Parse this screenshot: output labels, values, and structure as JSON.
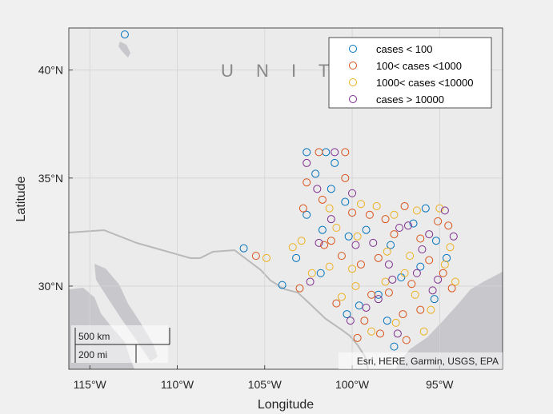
{
  "map": {
    "basemap_text": "U N I T E",
    "attribution": "Esri, HERE, Garmin, USGS, EPA",
    "scalebar_km": "500 km",
    "scalebar_mi": "200 mi",
    "xlabel": "Longitude",
    "ylabel": "Latitude",
    "lon_range": [
      -116.2,
      -91.4
    ],
    "lat_range": [
      26.15,
      41.95
    ],
    "x_ticks": [
      {
        "value": -115,
        "label": "115°W"
      },
      {
        "value": -110,
        "label": "110°W"
      },
      {
        "value": -105,
        "label": "105°W"
      },
      {
        "value": -100,
        "label": "100°W"
      },
      {
        "value": -95,
        "label": "95°W"
      }
    ],
    "y_ticks": [
      {
        "value": 30,
        "label": "30°N"
      },
      {
        "value": 35,
        "label": "35°N"
      },
      {
        "value": 40,
        "label": "40°N"
      }
    ],
    "colors": {
      "background": "#f0f0f0",
      "land": "#ebebeb",
      "water": "#c8c8cc",
      "border": "#b9b9b9",
      "grid": "#d4d4d4"
    }
  },
  "legend": {
    "items": [
      {
        "label": " cases < 100",
        "color": "#0072bd"
      },
      {
        "label": "100< cases <1000",
        "color": "#d95319"
      },
      {
        "label": "1000< cases <10000",
        "color": "#edb120"
      },
      {
        "label": "cases > 10000",
        "color": "#7e2f8e"
      }
    ]
  },
  "chart_data": {
    "type": "scatter",
    "title": "",
    "xlabel": "Longitude",
    "ylabel": "Latitude",
    "series": [
      {
        "name": " cases < 100",
        "color": "#0072bd",
        "points": [
          [
            -113.0,
            41.65
          ],
          [
            -106.2,
            31.75
          ],
          [
            -104.0,
            30.05
          ],
          [
            -102.6,
            36.2
          ],
          [
            -101.5,
            36.2
          ],
          [
            -101.0,
            35.7
          ],
          [
            -102.1,
            35.2
          ],
          [
            -101.2,
            34.5
          ],
          [
            -100.4,
            33.9
          ],
          [
            -102.6,
            33.3
          ],
          [
            -101.7,
            32.6
          ],
          [
            -100.2,
            32.3
          ],
          [
            -99.2,
            32.6
          ],
          [
            -97.8,
            31.9
          ],
          [
            -96.5,
            32.9
          ],
          [
            -95.8,
            33.6
          ],
          [
            -95.2,
            32.1
          ],
          [
            -94.6,
            31.3
          ],
          [
            -97.2,
            30.4
          ],
          [
            -98.5,
            29.6
          ],
          [
            -99.6,
            29.1
          ],
          [
            -96.1,
            30.9
          ],
          [
            -95.3,
            29.4
          ],
          [
            -98.0,
            28.4
          ],
          [
            -97.6,
            27.2
          ],
          [
            -100.3,
            28.7
          ],
          [
            -101.8,
            30.6
          ],
          [
            -103.2,
            31.3
          ]
        ]
      },
      {
        "name": "100< cases <1000",
        "color": "#d95319",
        "points": [
          [
            -105.5,
            31.4
          ],
          [
            -103.0,
            29.9
          ],
          [
            -102.6,
            34.8
          ],
          [
            -101.9,
            36.2
          ],
          [
            -100.4,
            36.2
          ],
          [
            -100.4,
            35.0
          ],
          [
            -101.7,
            34.0
          ],
          [
            -102.8,
            33.6
          ],
          [
            -100.0,
            33.4
          ],
          [
            -99.0,
            33.3
          ],
          [
            -98.1,
            33.1
          ],
          [
            -97.0,
            33.7
          ],
          [
            -101.2,
            32.1
          ],
          [
            -100.6,
            31.4
          ],
          [
            -99.5,
            31.0
          ],
          [
            -98.5,
            31.3
          ],
          [
            -97.6,
            32.4
          ],
          [
            -96.1,
            32.2
          ],
          [
            -95.1,
            33.0
          ],
          [
            -94.5,
            32.8
          ],
          [
            -94.8,
            30.6
          ],
          [
            -96.6,
            30.1
          ],
          [
            -97.9,
            29.7
          ],
          [
            -99.3,
            28.4
          ],
          [
            -98.4,
            27.8
          ],
          [
            -97.1,
            28.7
          ],
          [
            -96.1,
            28.9
          ],
          [
            -94.3,
            29.9
          ],
          [
            -99.7,
            27.6
          ],
          [
            -100.9,
            29.2
          ],
          [
            -101.6,
            31.9
          ],
          [
            -98.9,
            29.6
          ],
          [
            -95.6,
            31.2
          ],
          [
            -96.9,
            27.5
          ]
        ]
      },
      {
        "name": "1000< cases <10000",
        "color": "#edb120",
        "points": [
          [
            -104.9,
            31.3
          ],
          [
            -103.4,
            31.8
          ],
          [
            -102.3,
            30.6
          ],
          [
            -101.3,
            33.6
          ],
          [
            -99.5,
            33.8
          ],
          [
            -98.6,
            33.7
          ],
          [
            -97.6,
            33.3
          ],
          [
            -96.3,
            33.5
          ],
          [
            -95.0,
            33.6
          ],
          [
            -100.9,
            32.7
          ],
          [
            -99.7,
            32.3
          ],
          [
            -98.0,
            31.6
          ],
          [
            -96.7,
            31.4
          ],
          [
            -94.4,
            31.8
          ],
          [
            -94.7,
            31.0
          ],
          [
            -97.0,
            30.6
          ],
          [
            -98.1,
            30.2
          ],
          [
            -99.8,
            30.0
          ],
          [
            -100.6,
            29.5
          ],
          [
            -96.4,
            29.6
          ],
          [
            -95.5,
            28.9
          ],
          [
            -94.1,
            30.2
          ],
          [
            -97.5,
            28.3
          ],
          [
            -98.9,
            27.9
          ],
          [
            -101.3,
            30.9
          ],
          [
            -102.9,
            32.1
          ],
          [
            -100.0,
            30.8
          ],
          [
            -95.9,
            27.9
          ]
        ]
      },
      {
        "name": "cases > 10000",
        "color": "#7e2f8e",
        "points": [
          [
            -102.6,
            35.7
          ],
          [
            -101.0,
            36.2
          ],
          [
            -102.0,
            34.5
          ],
          [
            -100.0,
            34.3
          ],
          [
            -101.2,
            33.1
          ],
          [
            -99.8,
            31.9
          ],
          [
            -98.8,
            32.0
          ],
          [
            -97.3,
            32.7
          ],
          [
            -96.8,
            32.8
          ],
          [
            -95.6,
            32.4
          ],
          [
            -94.7,
            33.5
          ],
          [
            -94.2,
            32.3
          ],
          [
            -97.7,
            30.3
          ],
          [
            -98.5,
            29.4
          ],
          [
            -95.4,
            29.8
          ],
          [
            -95.1,
            30.3
          ],
          [
            -96.3,
            30.6
          ],
          [
            -97.4,
            27.8
          ],
          [
            -99.2,
            29.0
          ],
          [
            -100.1,
            28.4
          ],
          [
            -102.4,
            30.2
          ],
          [
            -101.9,
            32.0
          ],
          [
            -96.0,
            31.7
          ],
          [
            -97.9,
            31.0
          ]
        ]
      }
    ]
  }
}
